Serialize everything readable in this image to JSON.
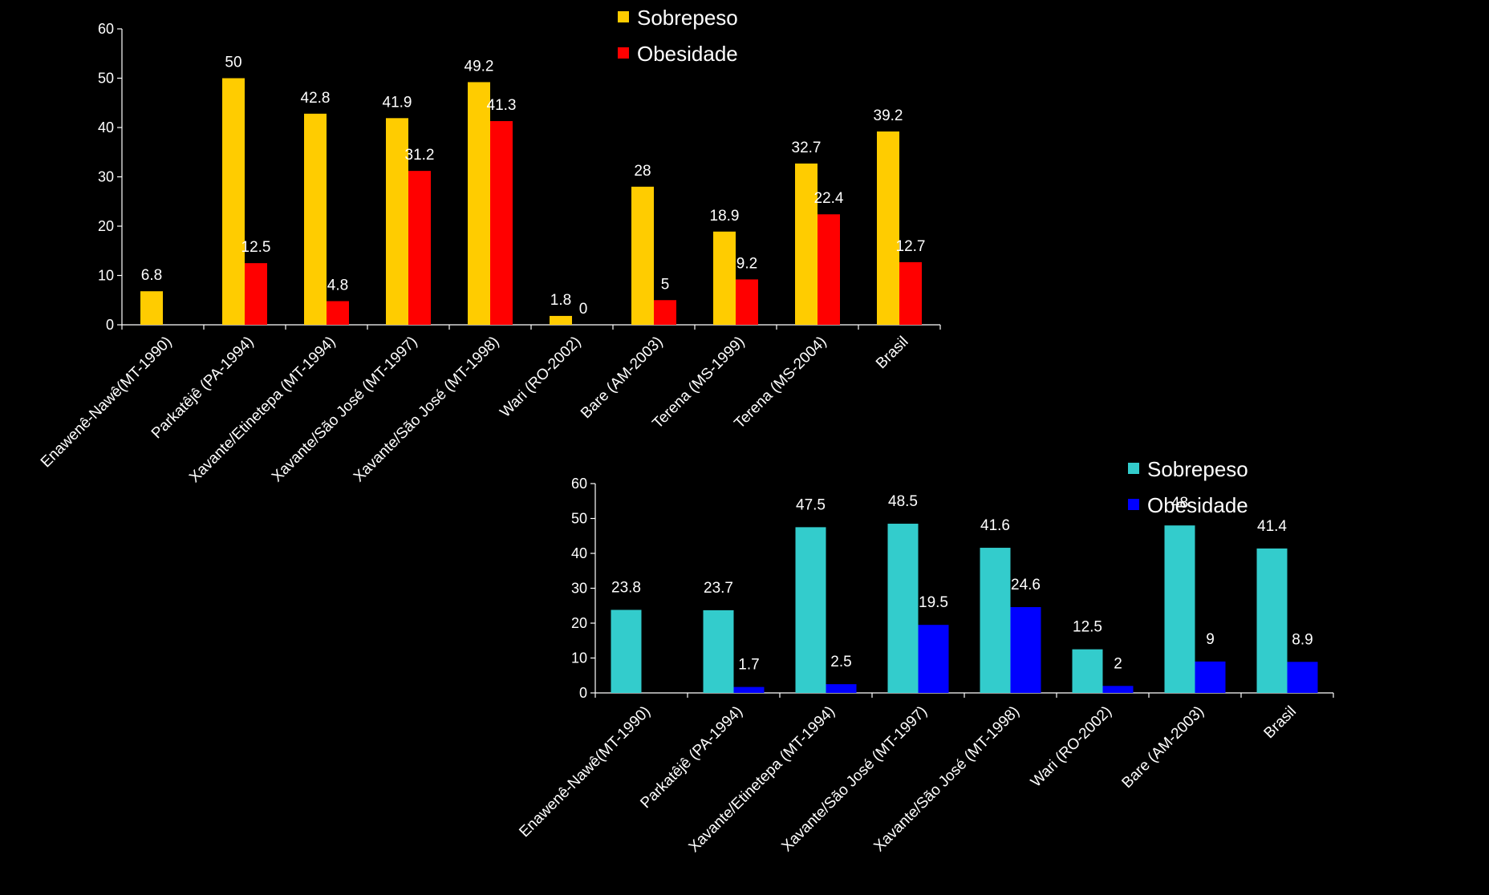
{
  "chart_data": [
    {
      "type": "bar",
      "title": "",
      "xlabel": "",
      "ylabel": "",
      "ylim": [
        0,
        60
      ],
      "yticks": [
        0,
        10,
        20,
        30,
        40,
        50,
        60
      ],
      "legend_position": "top-right",
      "grid": false,
      "categories": [
        "Enawenê-Nawê(MT-1990)",
        "Parkatêjê (PA-1994)",
        "Xavante/Etinetepa (MT-1994)",
        "Xavante/São José (MT-1997)",
        "Xavante/São José (MT-1998)",
        "Wari (RO-2002)",
        "Bare (AM-2003)",
        "Terena (MS-1999)",
        "Terena (MS-2004)",
        "Brasil"
      ],
      "series": [
        {
          "name": "Sobrepeso",
          "color": "#FFCC00",
          "values": [
            6.8,
            50,
            42.8,
            41.9,
            49.2,
            1.8,
            28,
            18.9,
            32.7,
            39.2
          ]
        },
        {
          "name": "Obesidade",
          "color": "#FF0000",
          "values": [
            null,
            12.5,
            4.8,
            31.2,
            41.3,
            0,
            5,
            9.2,
            22.4,
            12.7
          ]
        }
      ]
    },
    {
      "type": "bar",
      "title": "",
      "xlabel": "",
      "ylabel": "",
      "ylim": [
        0,
        60
      ],
      "yticks": [
        0,
        10,
        20,
        30,
        40,
        50,
        60
      ],
      "legend_position": "top-right",
      "grid": false,
      "categories": [
        "Enawenê-Nawê(MT-1990)",
        "Parkatêjê (PA-1994)",
        "Xavante/Etinetepa (MT-1994)",
        "Xavante/São José (MT-1997)",
        "Xavante/São José (MT-1998)",
        "Wari (RO-2002)",
        "Bare (AM-2003)",
        "Brasil"
      ],
      "series": [
        {
          "name": "Sobrepeso",
          "color": "#33CCCC",
          "values": [
            23.8,
            23.7,
            47.5,
            48.5,
            41.6,
            12.5,
            48,
            41.4
          ]
        },
        {
          "name": "Obesidade",
          "color": "#0000FF",
          "values": [
            null,
            1.7,
            2.5,
            19.5,
            24.6,
            2,
            9,
            8.9
          ]
        }
      ]
    }
  ]
}
